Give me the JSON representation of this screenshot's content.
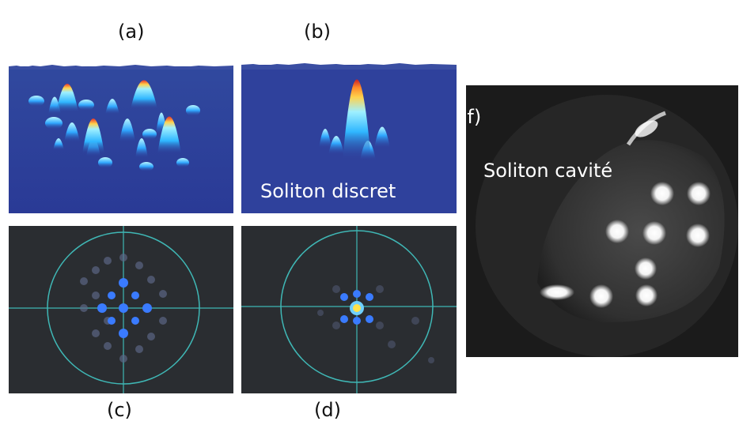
{
  "labels": {
    "a": "(a)",
    "b": "(b)",
    "c": "(c)",
    "d": "(d)",
    "f": "(f)"
  },
  "captions": {
    "discrete_soliton": "Soliton discret",
    "cavity_soliton": "Soliton cavité"
  },
  "colors": {
    "surface_background": "#2d3c9a",
    "beam_view_background": "#2a2d31",
    "crosshair": "#3fb7b5",
    "spot": "#3a7bff",
    "cavity_background": "#1b1b1b"
  }
}
